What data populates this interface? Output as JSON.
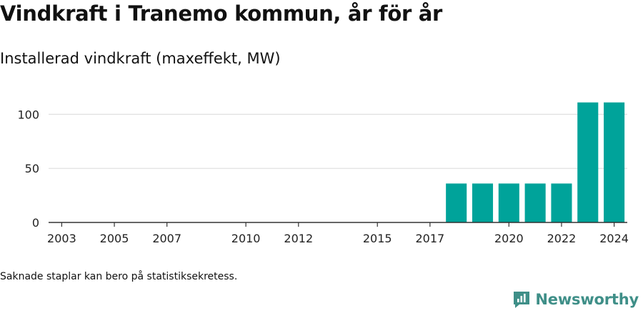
{
  "header": {
    "title": "Vindkraft i Tranemo kommun, år för år",
    "subtitle": "Installerad vindkraft (maxeffekt, MW)"
  },
  "footer": {
    "note": "Saknade staplar kan bero på statistiksekretess.",
    "brand": "Newsworthy"
  },
  "colors": {
    "bar": "#00a39a",
    "brand": "#3f8f88",
    "grid": "#dddddd",
    "axis": "#333333"
  },
  "chart_data": {
    "type": "bar",
    "categories": [
      2003,
      2004,
      2005,
      2006,
      2007,
      2008,
      2009,
      2010,
      2011,
      2012,
      2013,
      2014,
      2015,
      2016,
      2017,
      2018,
      2019,
      2020,
      2021,
      2022,
      2023,
      2024
    ],
    "values": [
      0,
      0,
      0,
      0,
      0,
      0,
      0,
      0,
      0,
      0,
      0,
      0,
      0,
      0,
      0,
      36,
      36,
      36,
      36,
      36,
      111,
      111
    ],
    "x_tick_labels": [
      "2003",
      "2005",
      "2007",
      "2010",
      "2012",
      "2015",
      "2017",
      "2020",
      "2022",
      "2024"
    ],
    "y_ticks": [
      0,
      50,
      100
    ],
    "ylim": [
      0,
      120
    ],
    "grid": true,
    "legend": "none"
  }
}
